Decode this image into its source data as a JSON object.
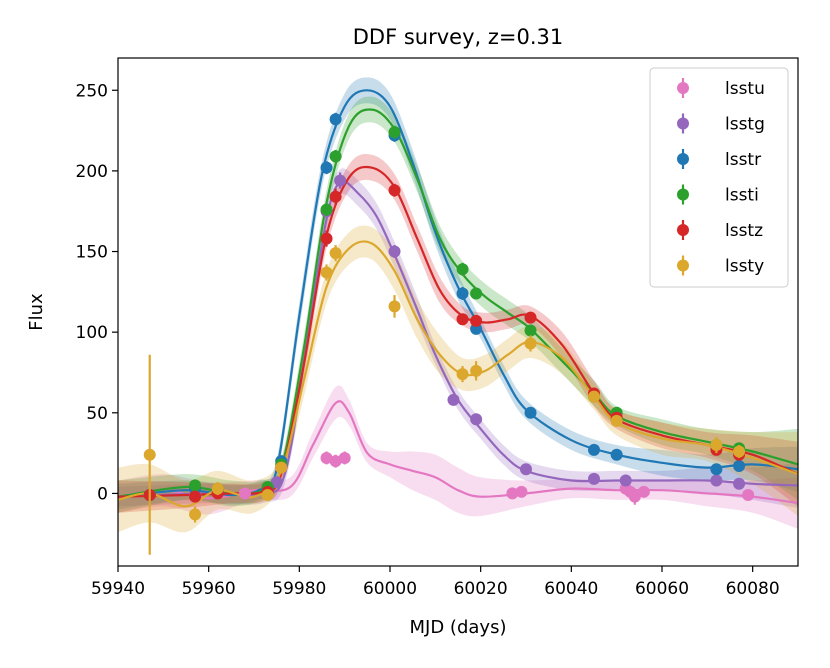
{
  "chart_data": {
    "type": "line",
    "title": "DDF survey, z=0.31",
    "xlabel": "MJD (days)",
    "ylabel": "Flux",
    "xlim": [
      59940,
      60090
    ],
    "ylim": [
      -45,
      270
    ],
    "xticks": [
      59940,
      59960,
      59980,
      60000,
      60020,
      60040,
      60060,
      60080
    ],
    "xtick_labels": [
      "59940",
      "59960",
      "59980",
      "60000",
      "60020",
      "60040",
      "60060",
      "60080"
    ],
    "yticks": [
      0,
      50,
      100,
      150,
      200,
      250
    ],
    "ytick_labels": [
      "0",
      "50",
      "100",
      "150",
      "200",
      "250"
    ],
    "legend_position": "top-right",
    "series": [
      {
        "name": "lsstu",
        "color": "#e377c2",
        "points": [
          [
            59947,
            -1
          ],
          [
            59957,
            -2
          ],
          [
            59962,
            1
          ],
          [
            59968,
            0
          ],
          [
            59986,
            22
          ],
          [
            59988,
            20
          ],
          [
            59990,
            22
          ],
          [
            60027,
            0
          ],
          [
            60029,
            1
          ],
          [
            60052,
            3
          ],
          [
            60053,
            1
          ],
          [
            60054,
            -2
          ],
          [
            60056,
            1
          ],
          [
            60079,
            -1
          ]
        ],
        "errors": [
          3,
          3,
          3,
          2,
          4,
          4,
          4,
          2,
          2,
          3,
          3,
          5,
          3,
          3
        ],
        "curve": [
          [
            59940,
            -2
          ],
          [
            59950,
            2
          ],
          [
            59960,
            -3
          ],
          [
            59970,
            2
          ],
          [
            59978,
            4
          ],
          [
            59983,
            30
          ],
          [
            59988,
            56
          ],
          [
            59991,
            50
          ],
          [
            59995,
            25
          ],
          [
            60000,
            18
          ],
          [
            60005,
            14
          ],
          [
            60010,
            10
          ],
          [
            60015,
            2
          ],
          [
            60020,
            -2
          ],
          [
            60030,
            0
          ],
          [
            60040,
            3
          ],
          [
            60050,
            2
          ],
          [
            60060,
            2
          ],
          [
            60070,
            0
          ],
          [
            60080,
            -2
          ],
          [
            60090,
            -6
          ]
        ],
        "band": [
          10,
          10,
          10,
          6,
          6,
          8,
          10,
          8,
          6,
          8,
          12,
          14,
          14,
          12,
          8,
          6,
          6,
          6,
          8,
          10,
          16
        ]
      },
      {
        "name": "lsstg",
        "color": "#9467bd",
        "points": [
          [
            59947,
            -1
          ],
          [
            59957,
            -1
          ],
          [
            59962,
            1
          ],
          [
            59975,
            7
          ],
          [
            59986,
            175
          ],
          [
            59989,
            194
          ],
          [
            60001,
            150
          ],
          [
            60014,
            58
          ],
          [
            60019,
            46
          ],
          [
            60030,
            15
          ],
          [
            60045,
            9
          ],
          [
            60052,
            8
          ],
          [
            60072,
            8
          ],
          [
            60077,
            6
          ]
        ],
        "errors": [
          3,
          3,
          3,
          3,
          5,
          5,
          4,
          3,
          3,
          3,
          3,
          3,
          3,
          3
        ],
        "curve": [
          [
            59940,
            -2
          ],
          [
            59960,
            0
          ],
          [
            59972,
            0
          ],
          [
            59977,
            14
          ],
          [
            59982,
            100
          ],
          [
            59986,
            170
          ],
          [
            59989,
            193
          ],
          [
            59993,
            186
          ],
          [
            59997,
            172
          ],
          [
            60001,
            148
          ],
          [
            60006,
            114
          ],
          [
            60010,
            86
          ],
          [
            60015,
            58
          ],
          [
            60020,
            40
          ],
          [
            60025,
            24
          ],
          [
            60030,
            14
          ],
          [
            60040,
            8
          ],
          [
            60050,
            8
          ],
          [
            60060,
            8
          ],
          [
            60070,
            8
          ],
          [
            60080,
            6
          ],
          [
            60090,
            5
          ]
        ],
        "band": [
          6,
          6,
          6,
          6,
          8,
          8,
          8,
          8,
          8,
          8,
          8,
          6,
          6,
          6,
          6,
          6,
          6,
          6,
          6,
          8,
          10,
          14
        ]
      },
      {
        "name": "lsstr",
        "color": "#1f77b4",
        "points": [
          [
            59947,
            -1
          ],
          [
            59957,
            3
          ],
          [
            59962,
            2
          ],
          [
            59973,
            3
          ],
          [
            59976,
            20
          ],
          [
            59986,
            202
          ],
          [
            59988,
            232
          ],
          [
            60001,
            222
          ],
          [
            60016,
            124
          ],
          [
            60019,
            102
          ],
          [
            60031,
            50
          ],
          [
            60045,
            27
          ],
          [
            60050,
            24
          ],
          [
            60072,
            15
          ],
          [
            60077,
            17
          ]
        ],
        "errors": [
          3,
          3,
          3,
          3,
          3,
          4,
          4,
          4,
          4,
          3,
          3,
          3,
          3,
          3,
          3
        ],
        "curve": [
          [
            59940,
            -2
          ],
          [
            59955,
            2
          ],
          [
            59965,
            -1
          ],
          [
            59971,
            2
          ],
          [
            59975,
            15
          ],
          [
            59980,
            110
          ],
          [
            59985,
            198
          ],
          [
            59990,
            240
          ],
          [
            59995,
            250
          ],
          [
            60000,
            240
          ],
          [
            60005,
            205
          ],
          [
            60010,
            162
          ],
          [
            60015,
            128
          ],
          [
            60020,
            102
          ],
          [
            60025,
            74
          ],
          [
            60030,
            52
          ],
          [
            60040,
            33
          ],
          [
            60050,
            24
          ],
          [
            60060,
            19
          ],
          [
            60070,
            16
          ],
          [
            60080,
            18
          ],
          [
            60090,
            15
          ]
        ],
        "band": [
          8,
          6,
          6,
          6,
          6,
          8,
          8,
          8,
          8,
          8,
          8,
          8,
          8,
          6,
          6,
          6,
          6,
          6,
          8,
          8,
          10,
          14
        ]
      },
      {
        "name": "lssti",
        "color": "#2ca02c",
        "points": [
          [
            59947,
            -1
          ],
          [
            59957,
            5
          ],
          [
            59962,
            3
          ],
          [
            59973,
            4
          ],
          [
            59976,
            18
          ],
          [
            59986,
            176
          ],
          [
            59988,
            209
          ],
          [
            60001,
            224
          ],
          [
            60016,
            139
          ],
          [
            60019,
            124
          ],
          [
            60031,
            101
          ],
          [
            60045,
            60
          ],
          [
            60050,
            50
          ],
          [
            60072,
            30
          ],
          [
            60077,
            28
          ]
        ],
        "errors": [
          3,
          3,
          3,
          3,
          3,
          4,
          4,
          4,
          4,
          3,
          3,
          3,
          3,
          3,
          3
        ],
        "curve": [
          [
            59940,
            -2
          ],
          [
            59955,
            4
          ],
          [
            59965,
            0
          ],
          [
            59972,
            2
          ],
          [
            59976,
            15
          ],
          [
            59981,
            90
          ],
          [
            59986,
            180
          ],
          [
            59991,
            228
          ],
          [
            59996,
            238
          ],
          [
            60001,
            226
          ],
          [
            60006,
            195
          ],
          [
            60011,
            158
          ],
          [
            60016,
            136
          ],
          [
            60021,
            122
          ],
          [
            60026,
            112
          ],
          [
            60031,
            102
          ],
          [
            60038,
            82
          ],
          [
            60045,
            62
          ],
          [
            60050,
            48
          ],
          [
            60060,
            38
          ],
          [
            60070,
            32
          ],
          [
            60080,
            26
          ],
          [
            60090,
            18
          ]
        ],
        "band": [
          10,
          8,
          8,
          6,
          6,
          8,
          8,
          8,
          8,
          8,
          8,
          8,
          8,
          8,
          8,
          8,
          8,
          8,
          6,
          8,
          8,
          12,
          22
        ]
      },
      {
        "name": "lsstz",
        "color": "#d62728",
        "points": [
          [
            59947,
            -1
          ],
          [
            59957,
            -2
          ],
          [
            59962,
            0
          ],
          [
            59973,
            1
          ],
          [
            59976,
            16
          ],
          [
            59986,
            158
          ],
          [
            59988,
            184
          ],
          [
            60001,
            188
          ],
          [
            60016,
            108
          ],
          [
            60019,
            107
          ],
          [
            60031,
            109
          ],
          [
            60045,
            62
          ],
          [
            60050,
            47
          ],
          [
            60072,
            27
          ],
          [
            60077,
            24
          ]
        ],
        "errors": [
          3,
          3,
          3,
          3,
          3,
          5,
          5,
          4,
          3,
          3,
          3,
          3,
          3,
          3,
          3
        ],
        "curve": [
          [
            59940,
            -2
          ],
          [
            59955,
            -1
          ],
          [
            59965,
            0
          ],
          [
            59972,
            1
          ],
          [
            59976,
            12
          ],
          [
            59981,
            80
          ],
          [
            59986,
            160
          ],
          [
            59991,
            196
          ],
          [
            59996,
            202
          ],
          [
            60001,
            190
          ],
          [
            60006,
            158
          ],
          [
            60011,
            126
          ],
          [
            60016,
            110
          ],
          [
            60021,
            106
          ],
          [
            60026,
            108
          ],
          [
            60031,
            110
          ],
          [
            60038,
            92
          ],
          [
            60045,
            62
          ],
          [
            60050,
            46
          ],
          [
            60060,
            36
          ],
          [
            60070,
            30
          ],
          [
            60080,
            24
          ],
          [
            60090,
            12
          ]
        ],
        "band": [
          10,
          8,
          6,
          6,
          6,
          8,
          8,
          8,
          8,
          8,
          8,
          8,
          6,
          6,
          6,
          6,
          8,
          8,
          6,
          8,
          8,
          12,
          20
        ]
      },
      {
        "name": "lssty",
        "color": "#dba72d",
        "points": [
          [
            59947,
            24
          ],
          [
            59957,
            -13
          ],
          [
            59962,
            3
          ],
          [
            59973,
            -1
          ],
          [
            59976,
            16
          ],
          [
            59986,
            137
          ],
          [
            59988,
            149
          ],
          [
            60001,
            116
          ],
          [
            60016,
            74
          ],
          [
            60019,
            76
          ],
          [
            60031,
            93
          ],
          [
            60045,
            60
          ],
          [
            60050,
            45
          ],
          [
            60072,
            30
          ],
          [
            60077,
            26
          ]
        ],
        "errors": [
          62,
          5,
          4,
          3,
          3,
          5,
          5,
          7,
          5,
          6,
          5,
          3,
          3,
          5,
          4
        ],
        "curve": [
          [
            59940,
            -4
          ],
          [
            59947,
            0
          ],
          [
            59955,
            -8
          ],
          [
            59962,
            2
          ],
          [
            59970,
            -2
          ],
          [
            59976,
            14
          ],
          [
            59981,
            70
          ],
          [
            59986,
            128
          ],
          [
            59991,
            152
          ],
          [
            59996,
            155
          ],
          [
            60001,
            138
          ],
          [
            60006,
            108
          ],
          [
            60011,
            86
          ],
          [
            60016,
            74
          ],
          [
            60021,
            76
          ],
          [
            60026,
            86
          ],
          [
            60031,
            94
          ],
          [
            60038,
            84
          ],
          [
            60045,
            60
          ],
          [
            60050,
            44
          ],
          [
            60060,
            34
          ],
          [
            60070,
            30
          ],
          [
            60080,
            22
          ],
          [
            60090,
            12
          ]
        ],
        "band": [
          20,
          18,
          16,
          12,
          10,
          8,
          10,
          10,
          10,
          10,
          12,
          12,
          12,
          10,
          10,
          10,
          10,
          10,
          8,
          8,
          10,
          10,
          16,
          26
        ]
      }
    ]
  }
}
